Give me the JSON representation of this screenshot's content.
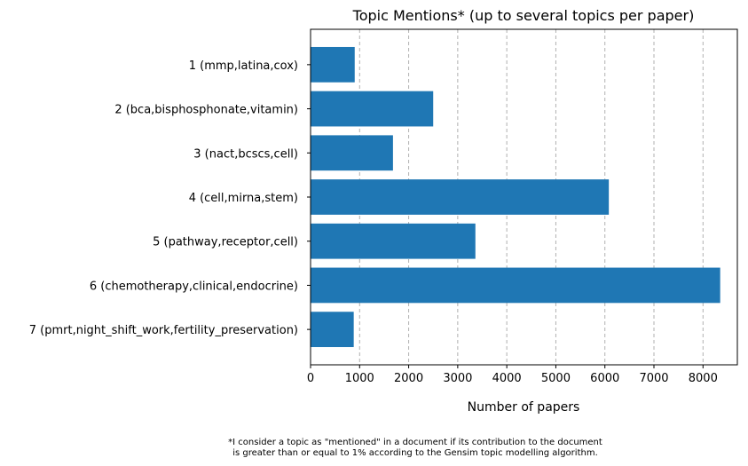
{
  "chart_data": {
    "type": "bar",
    "orientation": "horizontal",
    "title": "Topic Mentions* (up to several topics per paper)",
    "xlabel": "Number of papers",
    "ylabel": "",
    "categories": [
      "1 (mmp,latina,cox)",
      "2 (bca,bisphosphonate,vitamin)",
      "3 (nact,bcscs,cell)",
      "4 (cell,mirna,stem)",
      "5 (pathway,receptor,cell)",
      "6 (chemotherapy,clinical,endocrine)",
      "7 (pmrt,night_shift_work,fertility_preservation)"
    ],
    "values": [
      900,
      2500,
      1680,
      6080,
      3360,
      8350,
      880
    ],
    "xlim": [
      0,
      8700
    ],
    "xticks": [
      0,
      1000,
      2000,
      3000,
      4000,
      5000,
      6000,
      7000,
      8000
    ],
    "grid": "vertical dashed",
    "bar_color": "#1f77b4",
    "grid_color": "#b0b0b0"
  },
  "footnote": {
    "line1": "*I consider a topic as \"mentioned\" in a document if its contribution to the document",
    "line2": "is greater than or equal to 1% according to the Gensim topic modelling algorithm."
  }
}
